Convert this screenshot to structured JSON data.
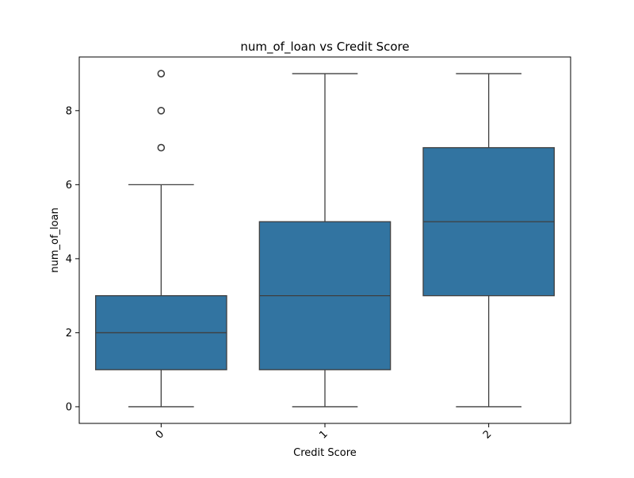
{
  "chart_data": {
    "type": "box",
    "title": "num_of_loan vs Credit Score",
    "xlabel": "Credit Score",
    "ylabel": "num_of_loan",
    "categories": [
      "0",
      "1",
      "2"
    ],
    "ylim": [
      -0.45,
      9.45
    ],
    "yticks": [
      0,
      2,
      4,
      6,
      8
    ],
    "xtick_rotation": 45,
    "grid": false,
    "legend": "none",
    "box_color": "#3274a1",
    "line_color": "#3f3f3f",
    "boxes": [
      {
        "category": "0",
        "whisker_low": 0,
        "q1": 1,
        "median": 2,
        "q3": 3,
        "whisker_high": 6,
        "outliers": [
          7,
          8,
          9
        ]
      },
      {
        "category": "1",
        "whisker_low": 0,
        "q1": 1,
        "median": 3,
        "q3": 5,
        "whisker_high": 9,
        "outliers": []
      },
      {
        "category": "2",
        "whisker_low": 0,
        "q1": 3,
        "median": 5,
        "q3": 7,
        "whisker_high": 9,
        "outliers": []
      }
    ]
  }
}
